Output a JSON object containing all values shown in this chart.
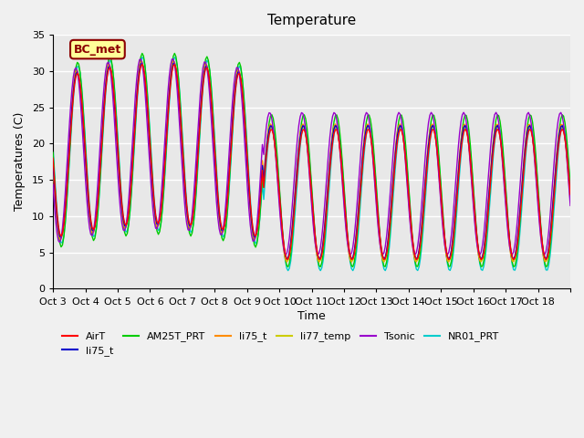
{
  "title": "Temperature",
  "xlabel": "Time",
  "ylabel": "Temperatures (C)",
  "ylim": [
    0,
    35
  ],
  "annotation": "BC_met",
  "series_colors": {
    "AirT": "#FF0000",
    "li75_t_blue": "#0000CC",
    "AM25T_PRT": "#00CC00",
    "li75_t_orange": "#FF8C00",
    "li77_temp": "#CCCC00",
    "Tsonic": "#9900CC",
    "NR01_PRT": "#00CCCC"
  },
  "x_tick_labels": [
    "Oct 3",
    "Oct 4",
    "Oct 5",
    "Oct 6",
    "Oct 7",
    "Oct 8",
    "Oct 9",
    "Oct 10",
    "Oct 11",
    "Oct 12",
    "Oct 13",
    "Oct 14",
    "Oct 15",
    "Oct 16",
    "Oct 17",
    "Oct 18"
  ],
  "n_days": 16,
  "background_color": "#F0F0F0",
  "plot_bg_color": "#E8E8E8",
  "grid_color": "#FFFFFF"
}
